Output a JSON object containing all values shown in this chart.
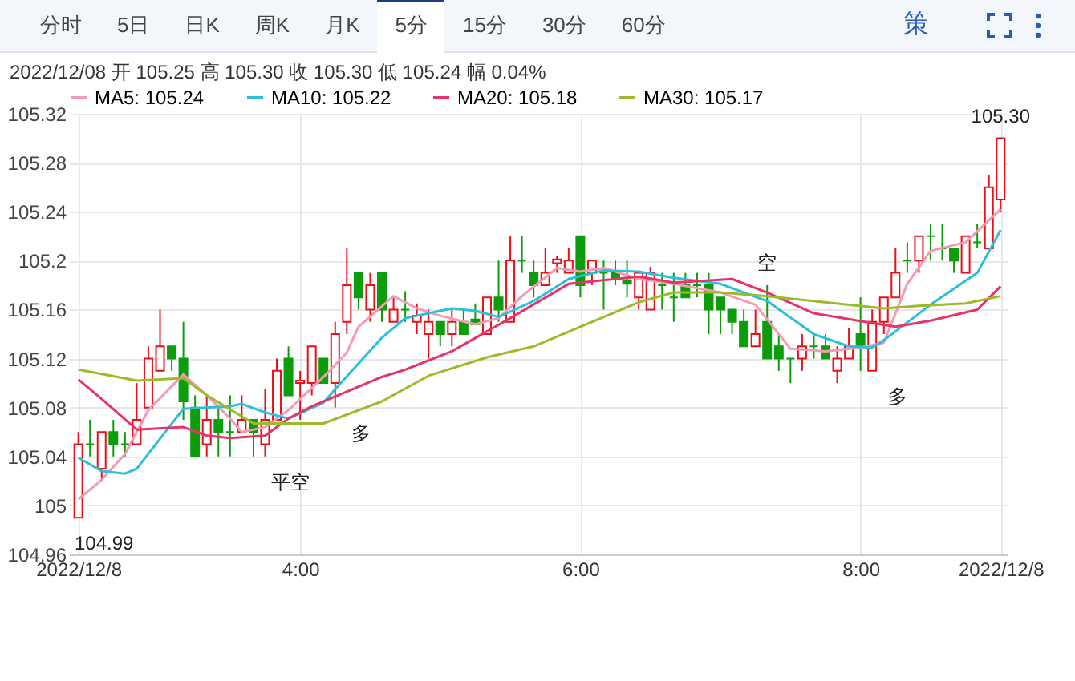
{
  "chart_data": {
    "type": "candlestick",
    "annotations": [
      "分时",
      "5日",
      "日K",
      "周K",
      "月K",
      "5分",
      "15分",
      "30分",
      "60分",
      "策",
      "2022/12/08  开 105.25  高 105.30  收 105.30  低 105.24  幅 0.04%",
      {
        "text": "104.99",
        "x": "2022-12-08T02:25",
        "y": 104.99
      },
      {
        "text": "105.30",
        "x": "2022-12-08T09:00",
        "y": 105.3
      },
      {
        "text": "平空",
        "x": "2022-12-08T03:45",
        "y": 105.04
      },
      {
        "text": "多",
        "x": "2022-12-08T04:15",
        "y": 105.08
      },
      {
        "text": "空",
        "x": "2022-12-08T07:20",
        "y": 105.18
      },
      {
        "text": "多",
        "x": "2022-12-08T08:05",
        "y": 105.11
      }
    ],
    "x": [
      "2022-12-08T02:25",
      "2022-12-08T02:30",
      "2022-12-08T02:35",
      "2022-12-08T02:40",
      "2022-12-08T02:45",
      "2022-12-08T02:50",
      "2022-12-08T02:55",
      "2022-12-08T03:00",
      "2022-12-08T03:05",
      "2022-12-08T03:10",
      "2022-12-08T03:15",
      "2022-12-08T03:20",
      "2022-12-08T03:25",
      "2022-12-08T03:30",
      "2022-12-08T03:35",
      "2022-12-08T03:40",
      "2022-12-08T03:45",
      "2022-12-08T03:50",
      "2022-12-08T03:55",
      "2022-12-08T04:00",
      "2022-12-08T04:05",
      "2022-12-08T04:10",
      "2022-12-08T04:15",
      "2022-12-08T04:20",
      "2022-12-08T04:25",
      "2022-12-08T04:30",
      "2022-12-08T04:35",
      "2022-12-08T04:40",
      "2022-12-08T04:45",
      "2022-12-08T04:50",
      "2022-12-08T04:55",
      "2022-12-08T05:00",
      "2022-12-08T05:05",
      "2022-12-08T05:10",
      "2022-12-08T05:15",
      "2022-12-08T05:20",
      "2022-12-08T05:25",
      "2022-12-08T05:30",
      "2022-12-08T05:35",
      "2022-12-08T05:40",
      "2022-12-08T05:45",
      "2022-12-08T05:50",
      "2022-12-08T05:55",
      "2022-12-08T06:00",
      "2022-12-08T06:05",
      "2022-12-08T06:10",
      "2022-12-08T06:15",
      "2022-12-08T06:20",
      "2022-12-08T06:25",
      "2022-12-08T06:30",
      "2022-12-08T06:35",
      "2022-12-08T06:40",
      "2022-12-08T06:45",
      "2022-12-08T06:50",
      "2022-12-08T06:55",
      "2022-12-08T07:00",
      "2022-12-08T07:05",
      "2022-12-08T07:10",
      "2022-12-08T07:15",
      "2022-12-08T07:20",
      "2022-12-08T07:25",
      "2022-12-08T07:30",
      "2022-12-08T07:35",
      "2022-12-08T07:40",
      "2022-12-08T07:45",
      "2022-12-08T07:50",
      "2022-12-08T07:55",
      "2022-12-08T08:00",
      "2022-12-08T08:05",
      "2022-12-08T08:10",
      "2022-12-08T08:15",
      "2022-12-08T08:20",
      "2022-12-08T08:25",
      "2022-12-08T08:30",
      "2022-12-08T08:35",
      "2022-12-08T08:40",
      "2022-12-08T08:45",
      "2022-12-08T08:50",
      "2022-12-08T08:55",
      "2022-12-08T09:00"
    ],
    "ohlc": [
      [
        104.99,
        105.06,
        104.99,
        105.05
      ],
      [
        105.05,
        105.07,
        105.04,
        105.05
      ],
      [
        105.03,
        105.06,
        105.02,
        105.06
      ],
      [
        105.06,
        105.07,
        105.04,
        105.05
      ],
      [
        105.05,
        105.06,
        105.04,
        105.05
      ],
      [
        105.05,
        105.1,
        105.05,
        105.07
      ],
      [
        105.08,
        105.13,
        105.08,
        105.12
      ],
      [
        105.11,
        105.16,
        105.11,
        105.13
      ],
      [
        105.13,
        105.13,
        105.11,
        105.12
      ],
      [
        105.12,
        105.15,
        105.07,
        105.085
      ],
      [
        105.08,
        105.09,
        105.04,
        105.04
      ],
      [
        105.05,
        105.09,
        105.04,
        105.07
      ],
      [
        105.07,
        105.08,
        105.04,
        105.06
      ],
      [
        105.06,
        105.09,
        105.04,
        105.06
      ],
      [
        105.06,
        105.09,
        105.06,
        105.07
      ],
      [
        105.07,
        105.07,
        105.04,
        105.06
      ],
      [
        105.05,
        105.095,
        105.04,
        105.07
      ],
      [
        105.07,
        105.12,
        105.07,
        105.11
      ],
      [
        105.12,
        105.13,
        105.09,
        105.09
      ],
      [
        105.1,
        105.11,
        105.07,
        105.102
      ],
      [
        105.1,
        105.13,
        105.09,
        105.13
      ],
      [
        105.12,
        105.12,
        105.1,
        105.1
      ],
      [
        105.1,
        105.15,
        105.08,
        105.14
      ],
      [
        105.15,
        105.21,
        105.14,
        105.18
      ],
      [
        105.19,
        105.19,
        105.16,
        105.17
      ],
      [
        105.16,
        105.19,
        105.15,
        105.18
      ],
      [
        105.19,
        105.19,
        105.15,
        105.16
      ],
      [
        105.15,
        105.17,
        105.15,
        105.16
      ],
      [
        105.16,
        105.175,
        105.15,
        105.16
      ],
      [
        105.15,
        105.165,
        105.14,
        105.155
      ],
      [
        105.14,
        105.16,
        105.12,
        105.15
      ],
      [
        105.15,
        105.15,
        105.13,
        105.14
      ],
      [
        105.14,
        105.16,
        105.13,
        105.15
      ],
      [
        105.15,
        105.16,
        105.14,
        105.14
      ],
      [
        105.152,
        105.165,
        105.148,
        105.148
      ],
      [
        105.14,
        105.17,
        105.14,
        105.17
      ],
      [
        105.17,
        105.2,
        105.15,
        105.16
      ],
      [
        105.15,
        105.22,
        105.15,
        105.2
      ],
      [
        105.2,
        105.22,
        105.19,
        105.2
      ],
      [
        105.19,
        105.2,
        105.17,
        105.18
      ],
      [
        105.18,
        105.21,
        105.18,
        105.19
      ],
      [
        105.198,
        105.204,
        105.19,
        105.201
      ],
      [
        105.19,
        105.21,
        105.19,
        105.2
      ],
      [
        105.22,
        105.22,
        105.17,
        105.18
      ],
      [
        105.19,
        105.2,
        105.18,
        105.2
      ],
      [
        105.19,
        105.2,
        105.16,
        105.19
      ],
      [
        105.19,
        105.2,
        105.18,
        105.185
      ],
      [
        105.184,
        105.2,
        105.17,
        105.181
      ],
      [
        105.17,
        105.19,
        105.16,
        105.19
      ],
      [
        105.16,
        105.195,
        105.16,
        105.19
      ],
      [
        105.18,
        105.19,
        105.16,
        105.18
      ],
      [
        105.17,
        105.19,
        105.15,
        105.17
      ],
      [
        105.18,
        105.19,
        105.17,
        105.17
      ],
      [
        105.18,
        105.19,
        105.17,
        105.18
      ],
      [
        105.18,
        105.19,
        105.14,
        105.16
      ],
      [
        105.17,
        105.17,
        105.14,
        105.16
      ],
      [
        105.16,
        105.16,
        105.14,
        105.15
      ],
      [
        105.15,
        105.16,
        105.13,
        105.13
      ],
      [
        105.13,
        105.16,
        105.13,
        105.14
      ],
      [
        105.15,
        105.18,
        105.12,
        105.12
      ],
      [
        105.13,
        105.14,
        105.11,
        105.12
      ],
      [
        105.12,
        105.12,
        105.1,
        105.12
      ],
      [
        105.12,
        105.14,
        105.11,
        105.13
      ],
      [
        105.13,
        105.14,
        105.12,
        105.13
      ],
      [
        105.13,
        105.14,
        105.12,
        105.12
      ],
      [
        105.11,
        105.13,
        105.1,
        105.12
      ],
      [
        105.12,
        105.145,
        105.12,
        105.13
      ],
      [
        105.14,
        105.17,
        105.11,
        105.13
      ],
      [
        105.11,
        105.16,
        105.11,
        105.15
      ],
      [
        105.15,
        105.17,
        105.14,
        105.17
      ],
      [
        105.17,
        105.21,
        105.17,
        105.19
      ],
      [
        105.2,
        105.215,
        105.19,
        105.2
      ],
      [
        105.2,
        105.22,
        105.19,
        105.22
      ],
      [
        105.22,
        105.23,
        105.2,
        105.22
      ],
      [
        105.21,
        105.23,
        105.2,
        105.21
      ],
      [
        105.21,
        105.21,
        105.19,
        105.2
      ],
      [
        105.19,
        105.22,
        105.19,
        105.22
      ],
      [
        105.215,
        105.23,
        105.21,
        105.215
      ],
      [
        105.21,
        105.27,
        105.21,
        105.26
      ],
      [
        105.25,
        105.3,
        105.24,
        105.3
      ]
    ],
    "colors": [
      "#e8101a",
      "#0c9c0c",
      "#e8101a",
      "#0c9c0c",
      "#0c9c0c",
      "#e8101a",
      "#e8101a",
      "#e8101a",
      "#0c9c0c",
      "#0c9c0c",
      "#0c9c0c",
      "#e8101a",
      "#0c9c0c",
      "#0c9c0c",
      "#e8101a",
      "#0c9c0c",
      "#e8101a",
      "#e8101a",
      "#0c9c0c",
      "#e8101a",
      "#e8101a",
      "#0c9c0c",
      "#e8101a",
      "#e8101a",
      "#0c9c0c",
      "#e8101a",
      "#0c9c0c",
      "#e8101a",
      "#0c9c0c",
      "#e8101a",
      "#e8101a",
      "#0c9c0c",
      "#e8101a",
      "#0c9c0c",
      "#0c9c0c",
      "#e8101a",
      "#0c9c0c",
      "#e8101a",
      "#0c9c0c",
      "#0c9c0c",
      "#e8101a",
      "#e8101a",
      "#e8101a",
      "#0c9c0c",
      "#e8101a",
      "#0c9c0c",
      "#0c9c0c",
      "#0c9c0c",
      "#e8101a",
      "#e8101a",
      "#0c9c0c",
      "#0c9c0c",
      "#0c9c0c",
      "#0c9c0c",
      "#0c9c0c",
      "#0c9c0c",
      "#0c9c0c",
      "#0c9c0c",
      "#e8101a",
      "#0c9c0c",
      "#0c9c0c",
      "#0c9c0c",
      "#e8101a",
      "#0c9c0c",
      "#0c9c0c",
      "#e8101a",
      "#e8101a",
      "#0c9c0c",
      "#e8101a",
      "#e8101a",
      "#e8101a",
      "#0c9c0c",
      "#e8101a",
      "#0c9c0c",
      "#0c9c0c",
      "#0c9c0c",
      "#e8101a",
      "#0c9c0c",
      "#e8101a",
      "#e8101a"
    ],
    "series": [
      {
        "name": "MA5: 105.24",
        "type": "line",
        "color": "#f59ab5",
        "x": [
          "2022-12-08T02:25",
          "2022-12-08T02:35",
          "2022-12-08T02:45",
          "2022-12-08T02:55",
          "2022-12-08T03:10",
          "2022-12-08T03:20",
          "2022-12-08T03:30",
          "2022-12-08T03:35",
          "2022-12-08T03:45",
          "2022-12-08T03:55",
          "2022-12-08T04:05",
          "2022-12-08T04:10",
          "2022-12-08T04:20",
          "2022-12-08T04:25",
          "2022-12-08T04:40",
          "2022-12-08T04:50",
          "2022-12-08T05:00",
          "2022-12-08T05:15",
          "2022-12-08T05:25",
          "2022-12-08T05:35",
          "2022-12-08T05:50",
          "2022-12-08T06:00",
          "2022-12-08T06:10",
          "2022-12-08T06:25",
          "2022-12-08T06:40",
          "2022-12-08T07:00",
          "2022-12-08T07:15",
          "2022-12-08T07:30",
          "2022-12-08T07:45",
          "2022-12-08T08:00",
          "2022-12-08T08:10",
          "2022-12-08T08:20",
          "2022-12-08T08:30",
          "2022-12-08T08:45",
          "2022-12-08T09:00"
        ],
        "values": [
          105.005,
          105.021,
          105.042,
          105.078,
          105.107,
          105.09,
          105.071,
          105.06,
          105.064,
          105.078,
          105.096,
          105.105,
          105.125,
          105.146,
          105.171,
          105.161,
          105.155,
          105.148,
          105.153,
          105.171,
          105.194,
          105.191,
          105.194,
          105.185,
          105.181,
          105.174,
          105.164,
          105.128,
          105.126,
          105.129,
          105.133,
          105.181,
          105.208,
          105.215,
          105.242
        ]
      },
      {
        "name": "MA10: 105.22",
        "type": "line",
        "color": "#2bbfdc",
        "x": [
          "2022-12-08T02:25",
          "2022-12-08T02:35",
          "2022-12-08T02:45",
          "2022-12-08T02:50",
          "2022-12-08T03:10",
          "2022-12-08T03:30",
          "2022-12-08T03:35",
          "2022-12-08T03:45",
          "2022-12-08T03:55",
          "2022-12-08T04:10",
          "2022-12-08T04:15",
          "2022-12-08T04:35",
          "2022-12-08T04:45",
          "2022-12-08T05:05",
          "2022-12-08T05:15",
          "2022-12-08T05:25",
          "2022-12-08T05:40",
          "2022-12-08T05:55",
          "2022-12-08T06:10",
          "2022-12-08T06:25",
          "2022-12-08T06:40",
          "2022-12-08T07:00",
          "2022-12-08T07:20",
          "2022-12-08T07:40",
          "2022-12-08T07:55",
          "2022-12-08T08:05",
          "2022-12-08T08:10",
          "2022-12-08T08:30",
          "2022-12-08T08:50",
          "2022-12-08T09:00"
        ],
        "values": [
          105.039,
          105.028,
          105.026,
          105.03,
          105.079,
          105.081,
          105.083,
          105.076,
          105.071,
          105.084,
          105.095,
          105.137,
          105.153,
          105.161,
          105.159,
          105.154,
          105.167,
          105.185,
          105.192,
          105.191,
          105.186,
          105.181,
          105.167,
          105.14,
          105.13,
          105.129,
          105.135,
          105.164,
          105.19,
          105.225
        ]
      },
      {
        "name": "MA20: 105.18",
        "type": "line",
        "color": "#e8336a",
        "x": [
          "2022-12-08T02:25",
          "2022-12-08T02:35",
          "2022-12-08T02:50",
          "2022-12-08T03:10",
          "2022-12-08T03:20",
          "2022-12-08T03:30",
          "2022-12-08T03:45",
          "2022-12-08T03:55",
          "2022-12-08T04:05",
          "2022-12-08T04:15",
          "2022-12-08T04:35",
          "2022-12-08T04:45",
          "2022-12-08T05:05",
          "2022-12-08T05:30",
          "2022-12-08T05:55",
          "2022-12-08T06:25",
          "2022-12-08T06:40",
          "2022-12-08T07:05",
          "2022-12-08T07:20",
          "2022-12-08T07:40",
          "2022-12-08T08:05",
          "2022-12-08T08:15",
          "2022-12-08T08:30",
          "2022-12-08T08:50",
          "2022-12-08T09:00"
        ],
        "values": [
          105.103,
          105.087,
          105.062,
          105.064,
          105.057,
          105.055,
          105.057,
          105.071,
          105.081,
          105.089,
          105.105,
          105.111,
          105.126,
          105.153,
          105.181,
          105.187,
          105.182,
          105.185,
          105.174,
          105.157,
          105.149,
          105.146,
          105.151,
          105.16,
          105.179
        ]
      },
      {
        "name": "MA30: 105.17",
        "type": "line",
        "color": "#9cbb2a",
        "x": [
          "2022-12-08T02:25",
          "2022-12-08T02:50",
          "2022-12-08T03:10",
          "2022-12-08T03:20",
          "2022-12-08T03:40",
          "2022-12-08T04:00",
          "2022-12-08T04:10",
          "2022-12-08T04:35",
          "2022-12-08T04:55",
          "2022-12-08T05:20",
          "2022-12-08T05:40",
          "2022-12-08T06:00",
          "2022-12-08T06:25",
          "2022-12-08T06:40",
          "2022-12-08T07:00",
          "2022-12-08T07:20",
          "2022-12-08T07:40",
          "2022-12-08T08:10",
          "2022-12-08T08:25",
          "2022-12-08T08:45",
          "2022-12-08T09:00"
        ],
        "values": [
          105.111,
          105.102,
          105.104,
          105.09,
          105.067,
          105.067,
          105.067,
          105.085,
          105.106,
          105.121,
          105.13,
          105.146,
          105.166,
          105.174,
          105.174,
          105.171,
          105.167,
          105.161,
          105.163,
          105.165,
          105.171
        ]
      }
    ],
    "xlim": [
      "2022-12-08T02:21",
      "2022-12-08T09:03"
    ],
    "xticks": [
      {
        "value": "2022-12-08T02:25",
        "label": "2022/12/8"
      },
      {
        "value": "2022-12-08T04:00",
        "label": "4:00"
      },
      {
        "value": "2022-12-08T06:00",
        "label": "6:00"
      },
      {
        "value": "2022-12-08T08:00",
        "label": "8:00"
      },
      {
        "value": "2022-12-08T09:00",
        "label": "2022/12/8"
      }
    ],
    "ylim": [
      104.96,
      105.32
    ],
    "yticks": [
      104.96,
      105,
      105.04,
      105.08,
      105.12,
      105.16,
      105.2,
      105.24,
      105.28,
      105.32
    ],
    "grid": true,
    "legend": "top left"
  }
}
